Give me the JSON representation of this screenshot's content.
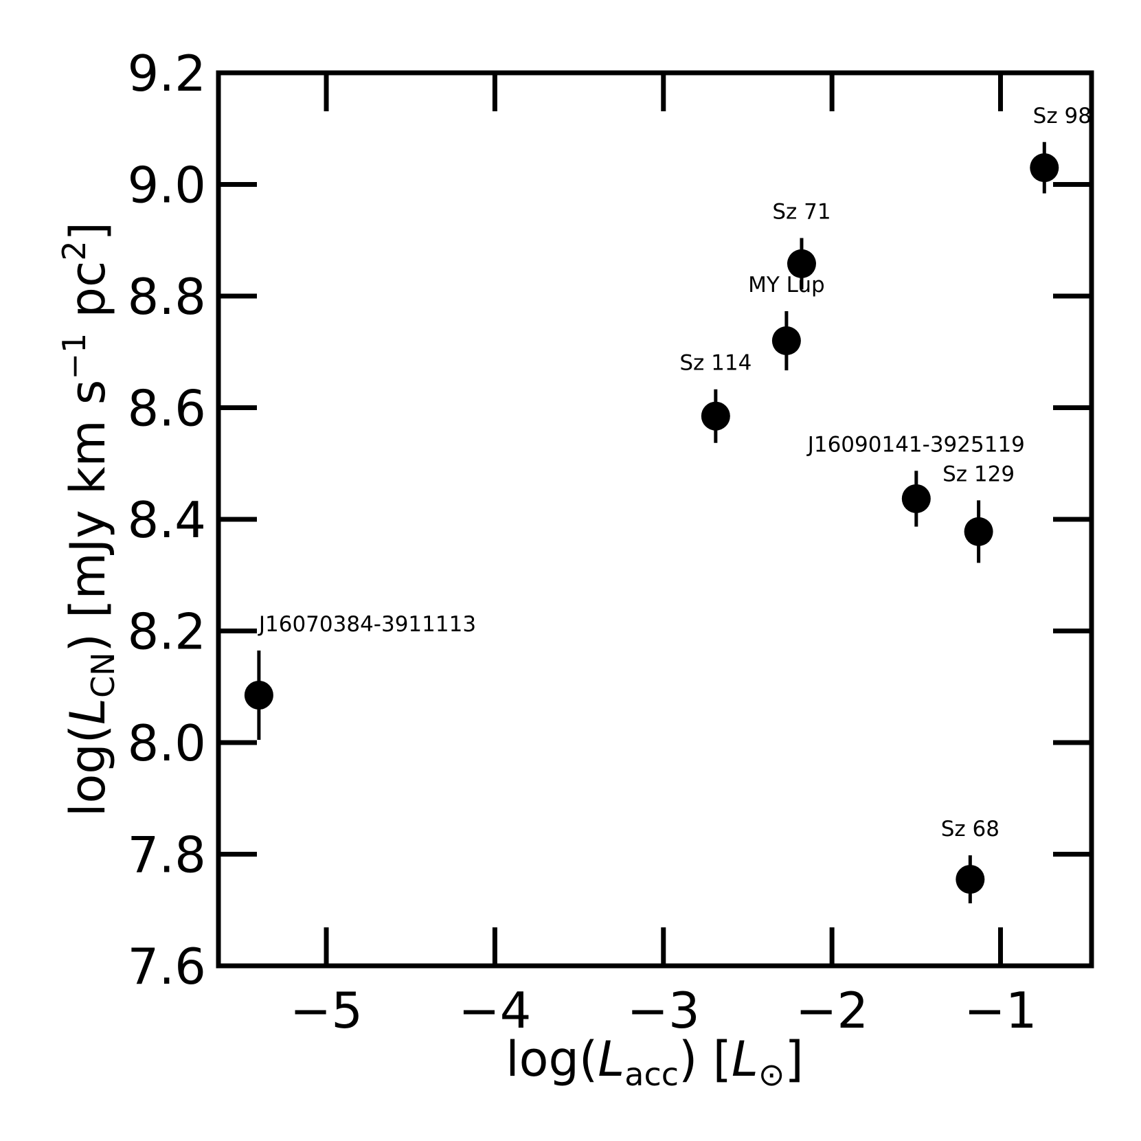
{
  "chart_data": {
    "type": "scatter",
    "title": "",
    "xlabel": {
      "pre": "log(",
      "sym": "L",
      "sub": "acc",
      "post": ") [",
      "unit_sym": "L",
      "unit_sub": "⊙",
      "end": "]"
    },
    "ylabel": {
      "pre": "log(",
      "sym": "L",
      "sub": "CN",
      "post": ") [mJy km s",
      "sup1": "−1",
      "mid": " pc",
      "sup2": "2",
      "end": "]"
    },
    "xlim": [
      -5.64,
      -0.46
    ],
    "ylim": [
      7.6,
      9.2
    ],
    "x_ticks": [
      -5,
      -4,
      -3,
      -2,
      -1
    ],
    "x_tick_labels": [
      "−5",
      "−4",
      "−3",
      "−2",
      "−1"
    ],
    "y_ticks": [
      7.6,
      7.8,
      8.0,
      8.2,
      8.4,
      8.6,
      8.8,
      9.0,
      9.2
    ],
    "y_tick_labels": [
      "7.6",
      "7.8",
      "8.0",
      "8.2",
      "8.4",
      "8.6",
      "8.8",
      "9.0",
      "9.2"
    ],
    "grid": false,
    "legend": "none",
    "marker_color": "#000000",
    "points": [
      {
        "name": "J16070384-3911113",
        "x": -5.4,
        "y": 8.085,
        "yerr_low": 0.08,
        "yerr_high": 0.08
      },
      {
        "name": "Sz 114",
        "x": -2.69,
        "y": 8.585,
        "yerr_low": 0.048,
        "yerr_high": 0.048
      },
      {
        "name": "MY Lup",
        "x": -2.27,
        "y": 8.72,
        "yerr_low": 0.053,
        "yerr_high": 0.053
      },
      {
        "name": "Sz 71",
        "x": -2.18,
        "y": 8.858,
        "yerr_low": 0.046,
        "yerr_high": 0.046
      },
      {
        "name": "J16090141-3925119",
        "x": -1.5,
        "y": 8.437,
        "yerr_low": 0.05,
        "yerr_high": 0.05
      },
      {
        "name": "Sz 129",
        "x": -1.13,
        "y": 8.378,
        "yerr_low": 0.056,
        "yerr_high": 0.056
      },
      {
        "name": "Sz 68",
        "x": -1.18,
        "y": 7.755,
        "yerr_low": 0.043,
        "yerr_high": 0.043
      },
      {
        "name": "Sz 98",
        "x": -0.74,
        "y": 9.03,
        "yerr_low": 0.046,
        "yerr_high": 0.046
      }
    ]
  }
}
